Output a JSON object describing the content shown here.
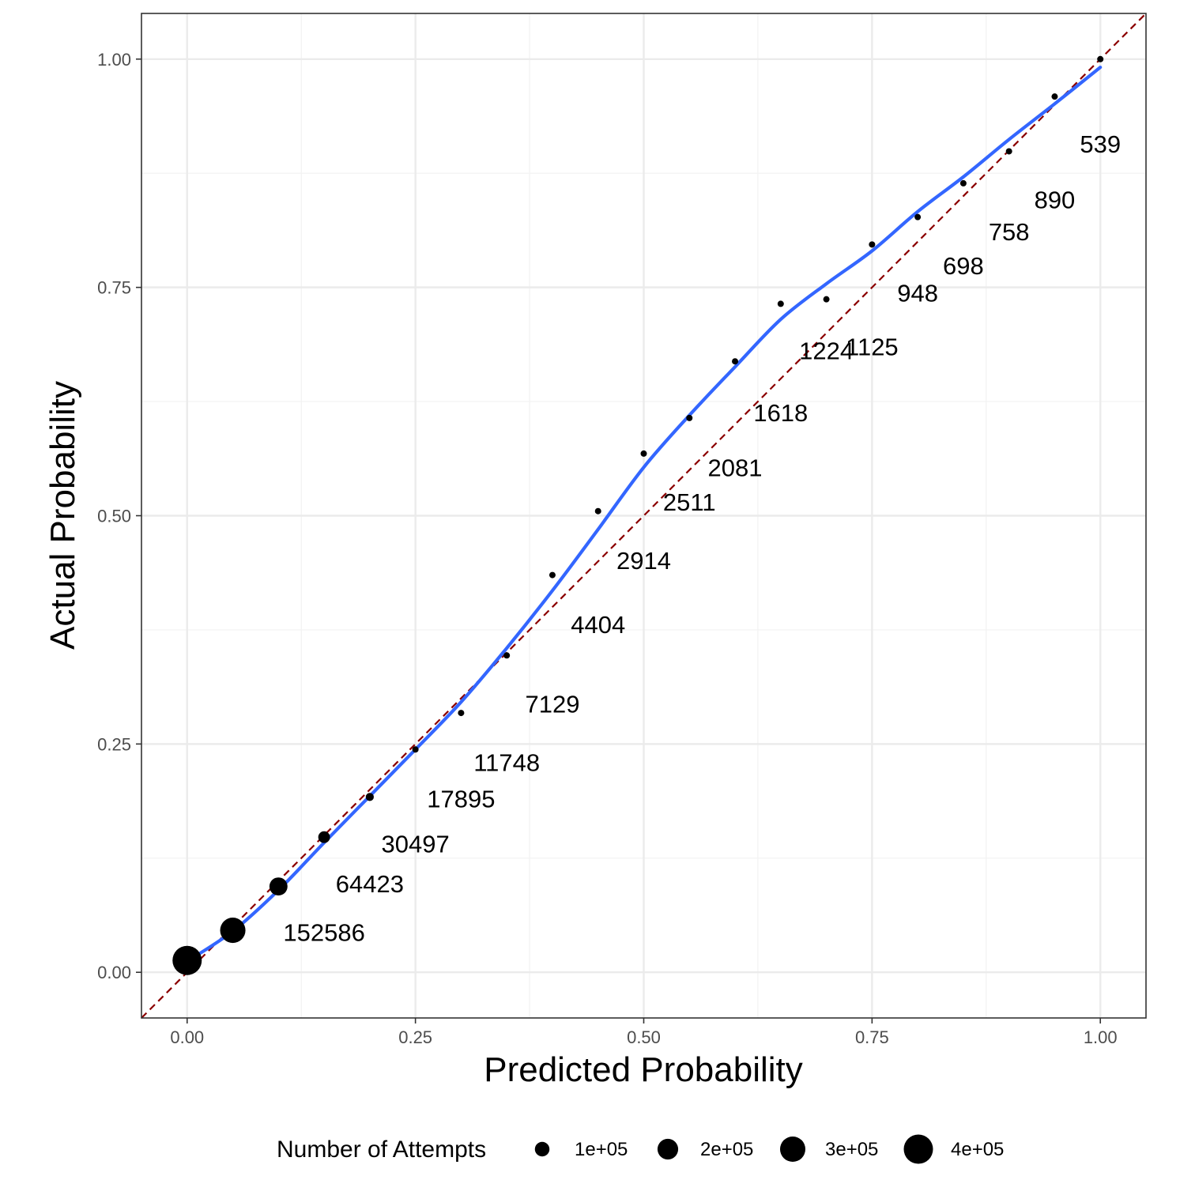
{
  "chart_data": {
    "type": "scatter",
    "title": "",
    "xlabel": "Predicted Probability",
    "ylabel": "Actual Probability",
    "xlim": [
      -0.05,
      1.05
    ],
    "ylim": [
      -0.05,
      1.05
    ],
    "x_ticks": [
      {
        "value": 0.0,
        "label": "0.00"
      },
      {
        "value": 0.25,
        "label": "0.25"
      },
      {
        "value": 0.5,
        "label": "0.50"
      },
      {
        "value": 0.75,
        "label": "0.75"
      },
      {
        "value": 1.0,
        "label": "1.00"
      }
    ],
    "y_ticks": [
      {
        "value": 0.0,
        "label": "0.00"
      },
      {
        "value": 0.25,
        "label": "0.25"
      },
      {
        "value": 0.5,
        "label": "0.50"
      },
      {
        "value": 0.75,
        "label": "0.75"
      },
      {
        "value": 1.0,
        "label": "1.00"
      }
    ],
    "grid": true,
    "reference_line": {
      "style": "dashed",
      "color": "#8b0000",
      "from": [
        -0.05,
        -0.05
      ],
      "to": [
        1.05,
        1.05
      ]
    },
    "points": [
      {
        "x": 0.0,
        "y": 0.013,
        "n": 400000,
        "label": ""
      },
      {
        "x": 0.05,
        "y": 0.046,
        "n": 300000,
        "label": "152586"
      },
      {
        "x": 0.1,
        "y": 0.094,
        "n": 152586,
        "label": "64423"
      },
      {
        "x": 0.15,
        "y": 0.148,
        "n": 64423,
        "label": "30497"
      },
      {
        "x": 0.2,
        "y": 0.192,
        "n": 30497,
        "label": "17895"
      },
      {
        "x": 0.25,
        "y": 0.244,
        "n": 17895,
        "label": "11748"
      },
      {
        "x": 0.3,
        "y": 0.284,
        "n": 11748,
        "label": "7129"
      },
      {
        "x": 0.35,
        "y": 0.347,
        "n": 7129,
        "label": "4404"
      },
      {
        "x": 0.4,
        "y": 0.435,
        "n": 4404,
        "label": "2914"
      },
      {
        "x": 0.45,
        "y": 0.505,
        "n": 2914,
        "label": "2511"
      },
      {
        "x": 0.5,
        "y": 0.568,
        "n": 2511,
        "label": "2081"
      },
      {
        "x": 0.55,
        "y": 0.607,
        "n": 2081,
        "label": "1618"
      },
      {
        "x": 0.6,
        "y": 0.669,
        "n": 1618,
        "label": "1224"
      },
      {
        "x": 0.65,
        "y": 0.732,
        "n": 1224,
        "label": "1125"
      },
      {
        "x": 0.7,
        "y": 0.737,
        "n": 1125,
        "label": "948"
      },
      {
        "x": 0.75,
        "y": 0.797,
        "n": 948,
        "label": "698"
      },
      {
        "x": 0.8,
        "y": 0.827,
        "n": 698,
        "label": "758"
      },
      {
        "x": 0.85,
        "y": 0.864,
        "n": 758,
        "label": "890"
      },
      {
        "x": 0.9,
        "y": 0.899,
        "n": 890,
        "label": "539"
      },
      {
        "x": 0.95,
        "y": 0.959,
        "n": 539,
        "label": ""
      },
      {
        "x": 1.0,
        "y": 1.0,
        "n": 400,
        "label": ""
      }
    ],
    "label_positions": [
      {
        "text": "152586",
        "x": 0.15,
        "y": 0.044
      },
      {
        "text": "64423",
        "x": 0.2,
        "y": 0.097
      },
      {
        "text": "30497",
        "x": 0.25,
        "y": 0.141
      },
      {
        "text": "17895",
        "x": 0.3,
        "y": 0.19
      },
      {
        "text": "11748",
        "x": 0.35,
        "y": 0.23
      },
      {
        "text": "7129",
        "x": 0.4,
        "y": 0.294
      },
      {
        "text": "4404",
        "x": 0.45,
        "y": 0.381
      },
      {
        "text": "2914",
        "x": 0.5,
        "y": 0.451
      },
      {
        "text": "2511",
        "x": 0.55,
        "y": 0.515
      },
      {
        "text": "2081",
        "x": 0.6,
        "y": 0.553
      },
      {
        "text": "1618",
        "x": 0.65,
        "y": 0.613
      },
      {
        "text": "1224",
        "x": 0.7,
        "y": 0.681
      },
      {
        "text": "1125",
        "x": 0.75,
        "y": 0.685
      },
      {
        "text": "948",
        "x": 0.8,
        "y": 0.744
      },
      {
        "text": "698",
        "x": 0.85,
        "y": 0.774
      },
      {
        "text": "758",
        "x": 0.9,
        "y": 0.811
      },
      {
        "text": "890",
        "x": 0.95,
        "y": 0.846
      },
      {
        "text": "539",
        "x": 1.0,
        "y": 0.907
      }
    ],
    "smooth_line": {
      "color": "#3366ff",
      "x": [
        0.0,
        0.05,
        0.1,
        0.15,
        0.2,
        0.25,
        0.3,
        0.35,
        0.4,
        0.45,
        0.5,
        0.55,
        0.6,
        0.65,
        0.7,
        0.75,
        0.8,
        0.85,
        0.9,
        0.95,
        1.0
      ],
      "y": [
        0.012,
        0.045,
        0.09,
        0.142,
        0.193,
        0.244,
        0.296,
        0.355,
        0.418,
        0.485,
        0.553,
        0.61,
        0.663,
        0.715,
        0.754,
        0.79,
        0.833,
        0.871,
        0.912,
        0.951,
        0.991
      ]
    },
    "legend": {
      "title": "Number of Attempts",
      "placement": "bottom",
      "items": [
        {
          "label": "1e+05",
          "n": 100000
        },
        {
          "label": "2e+05",
          "n": 200000
        },
        {
          "label": "3e+05",
          "n": 300000
        },
        {
          "label": "4e+05",
          "n": 400000
        }
      ]
    },
    "colors": {
      "points": "#000000",
      "smooth": "#3366ff",
      "reference": "#8b0000",
      "grid_major": "#ebebeb",
      "grid_minor": "#f2f2f2",
      "panel_border": "#333333"
    }
  }
}
